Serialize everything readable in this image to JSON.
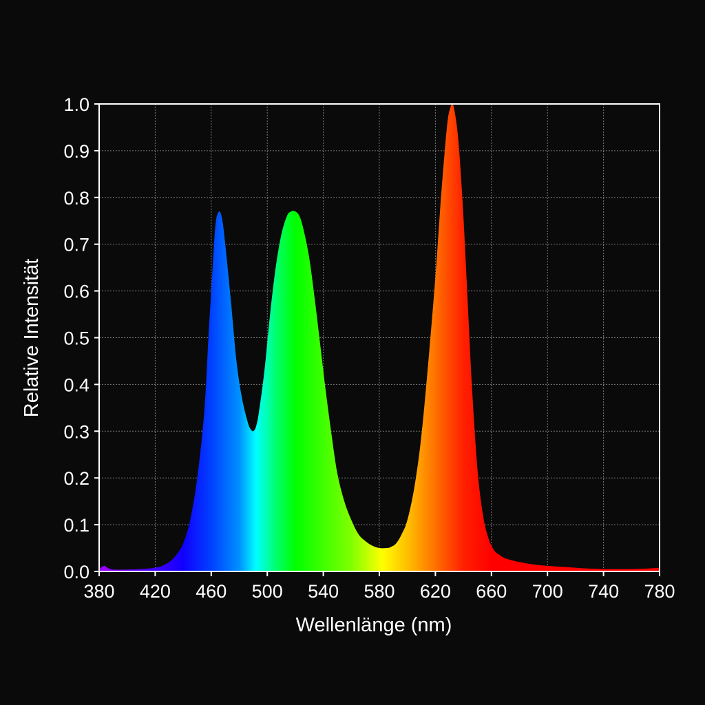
{
  "chart_data": {
    "type": "area",
    "title": "",
    "xlabel": "Wellenlänge (nm)",
    "ylabel": "Relative Intensität",
    "xlim": [
      380,
      780
    ],
    "ylim": [
      0,
      1.0
    ],
    "x_ticks": [
      "380",
      "420",
      "460",
      "500",
      "540",
      "580",
      "620",
      "660",
      "700",
      "740",
      "780"
    ],
    "y_ticks": [
      "0.0",
      "0.1",
      "0.2",
      "0.3",
      "0.4",
      "0.5",
      "0.6",
      "0.7",
      "0.8",
      "0.9",
      "1.0"
    ],
    "grid": true,
    "legend": "none",
    "fill": "visible-spectrum-gradient",
    "series": [
      {
        "x": [
          380,
          382,
          384,
          386,
          390,
          400,
          410,
          420,
          425,
          430,
          435,
          440,
          445,
          450,
          455,
          458,
          460,
          462,
          463,
          464,
          466,
          468,
          470,
          474,
          478,
          482,
          486,
          488,
          490,
          492,
          494,
          498,
          502,
          506,
          510,
          514,
          517,
          520,
          523,
          526,
          530,
          534,
          538,
          542,
          546,
          550,
          555,
          560,
          565,
          570,
          575,
          580,
          585,
          588,
          592,
          596,
          600,
          605,
          610,
          615,
          620,
          624,
          627,
          629,
          631,
          632,
          633,
          635,
          637,
          640,
          643,
          646,
          650,
          654,
          658,
          662,
          666,
          670,
          680,
          690,
          700,
          710,
          720,
          730,
          740,
          750,
          760,
          770,
          780
        ],
        "y": [
          0.005,
          0.01,
          0.012,
          0.008,
          0.004,
          0.004,
          0.005,
          0.008,
          0.012,
          0.02,
          0.035,
          0.06,
          0.11,
          0.2,
          0.34,
          0.5,
          0.6,
          0.7,
          0.74,
          0.76,
          0.77,
          0.75,
          0.7,
          0.58,
          0.45,
          0.37,
          0.32,
          0.305,
          0.3,
          0.31,
          0.34,
          0.43,
          0.55,
          0.65,
          0.72,
          0.76,
          0.77,
          0.77,
          0.76,
          0.73,
          0.67,
          0.58,
          0.48,
          0.38,
          0.29,
          0.21,
          0.15,
          0.11,
          0.08,
          0.065,
          0.055,
          0.05,
          0.05,
          0.052,
          0.06,
          0.08,
          0.11,
          0.18,
          0.29,
          0.45,
          0.63,
          0.8,
          0.91,
          0.97,
          0.995,
          1.0,
          0.995,
          0.96,
          0.9,
          0.76,
          0.58,
          0.4,
          0.22,
          0.12,
          0.07,
          0.045,
          0.035,
          0.028,
          0.02,
          0.015,
          0.012,
          0.01,
          0.008,
          0.006,
          0.005,
          0.005,
          0.005,
          0.006,
          0.008
        ]
      }
    ]
  }
}
